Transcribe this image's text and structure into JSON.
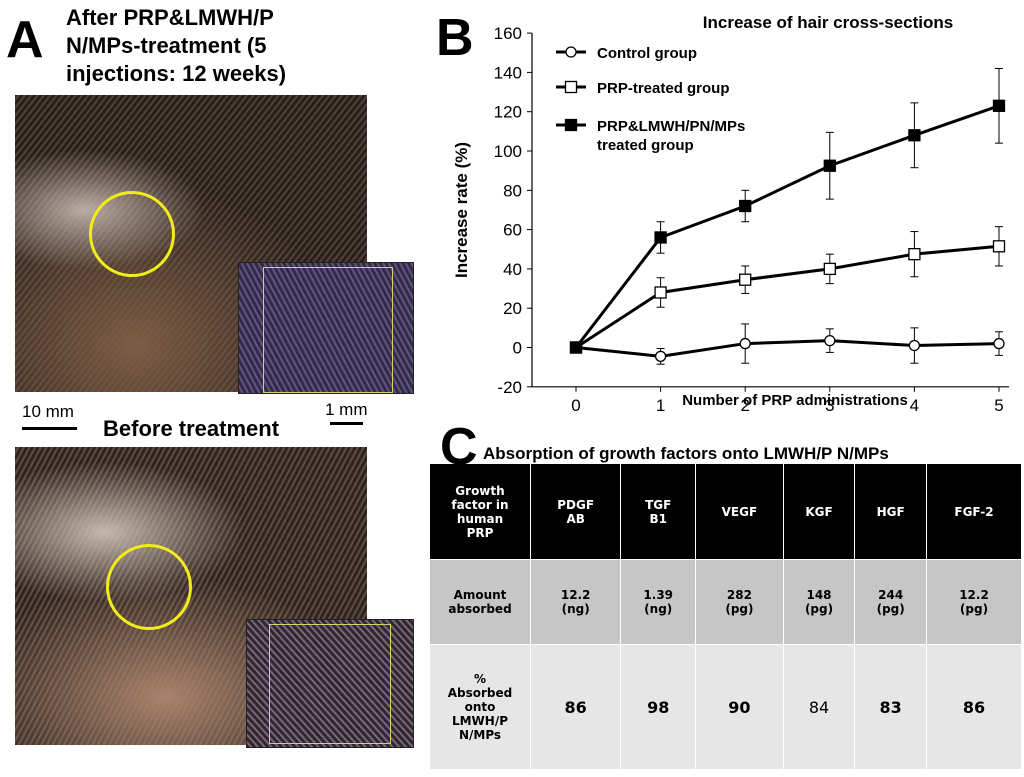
{
  "panel_a": {
    "letter": "A",
    "after_title": "After PRP&LMWH/P\nN/MPs-treatment  (5\ninjections:  12 weeks)",
    "before_title": "Before treatment",
    "scale_left": "10 mm",
    "scale_right": "1 mm"
  },
  "panel_b": {
    "letter": "B"
  },
  "panel_c": {
    "letter": "C",
    "title": "Absorption of growth factors onto LMWH/P N/MPs",
    "headers": [
      "Growth\nfactor in\nhuman\nPRP",
      "PDGF\nAB",
      "TGF\nB1",
      "VEGF",
      "KGF",
      "HGF",
      "FGF-2"
    ],
    "row1": [
      "Amount\nabsorbed",
      "12.2\n(ng)",
      "1.39\n(ng)",
      "282\n(pg)",
      "148\n(pg)",
      "244\n(pg)",
      "12.2\n(pg)"
    ],
    "row2": [
      "%\nAbsorbed\nonto\nLMWH/P\nN/MPs",
      "86",
      "98",
      "90",
      "84",
      "83",
      "86"
    ]
  },
  "chart_data": {
    "type": "line",
    "title": "Increase of hair cross-sections",
    "xlabel": "Number of PRP administrations",
    "ylabel": "Increase rate (%)",
    "x": [
      0,
      1,
      2,
      3,
      4,
      5
    ],
    "xlim": [
      0,
      5
    ],
    "ylim": [
      -20,
      160
    ],
    "yticks": [
      -20,
      0,
      20,
      40,
      60,
      80,
      100,
      120,
      140,
      160
    ],
    "legend_position": "top-left",
    "series": [
      {
        "name": "Control group",
        "marker": "open-circle",
        "values": [
          0,
          -4.5,
          2,
          3.5,
          1,
          2
        ],
        "errors": [
          0,
          4,
          10,
          6,
          9,
          6
        ]
      },
      {
        "name": "PRP-treated group",
        "marker": "open-square",
        "values": [
          0,
          28,
          34.5,
          40,
          47.5,
          51.5
        ],
        "errors": [
          0,
          7.5,
          7,
          7.5,
          11.5,
          10
        ]
      },
      {
        "name": "PRP&LMWH/PN/MPs\ntreated group",
        "marker": "filled-square",
        "values": [
          0,
          56,
          72,
          92.5,
          108,
          123
        ],
        "errors": [
          0,
          8,
          8,
          17,
          16.5,
          19
        ]
      }
    ]
  }
}
